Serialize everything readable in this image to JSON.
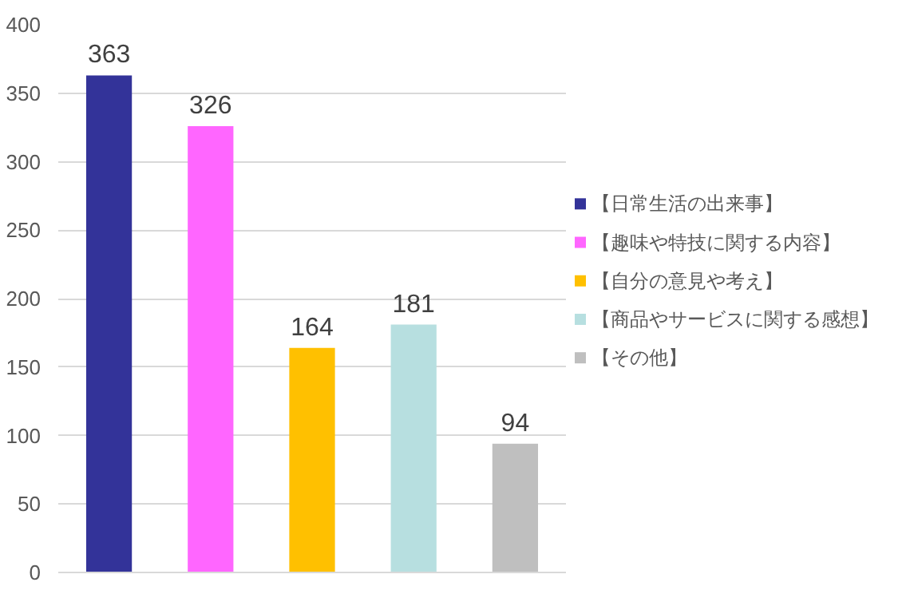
{
  "chart_data": {
    "type": "bar",
    "categories": [
      null,
      null,
      null,
      null,
      null
    ],
    "series": [
      {
        "name": "【日常生活の出来事】",
        "color": "#333399",
        "values": [
          363,
          null,
          null,
          null,
          null
        ]
      },
      {
        "name": "【趣味や特技に関する内容】",
        "color": "#ff66ff",
        "values": [
          null,
          326,
          null,
          null,
          null
        ]
      },
      {
        "name": "【自分の意見や考え】",
        "color": "#ffc000",
        "values": [
          null,
          null,
          164,
          null,
          null
        ]
      },
      {
        "name": "【商品やサービスに関する感想】",
        "color": "#b7dfe0",
        "values": [
          null,
          null,
          null,
          181,
          null
        ]
      },
      {
        "name": "【その他】",
        "color": "#bfbfbf",
        "values": [
          null,
          null,
          null,
          null,
          94
        ]
      }
    ],
    "ylim": [
      0,
      400
    ],
    "yticks": [
      0,
      50,
      100,
      150,
      200,
      250,
      300,
      350,
      400
    ],
    "grid": "y",
    "data_labels": true,
    "legend": "right"
  }
}
